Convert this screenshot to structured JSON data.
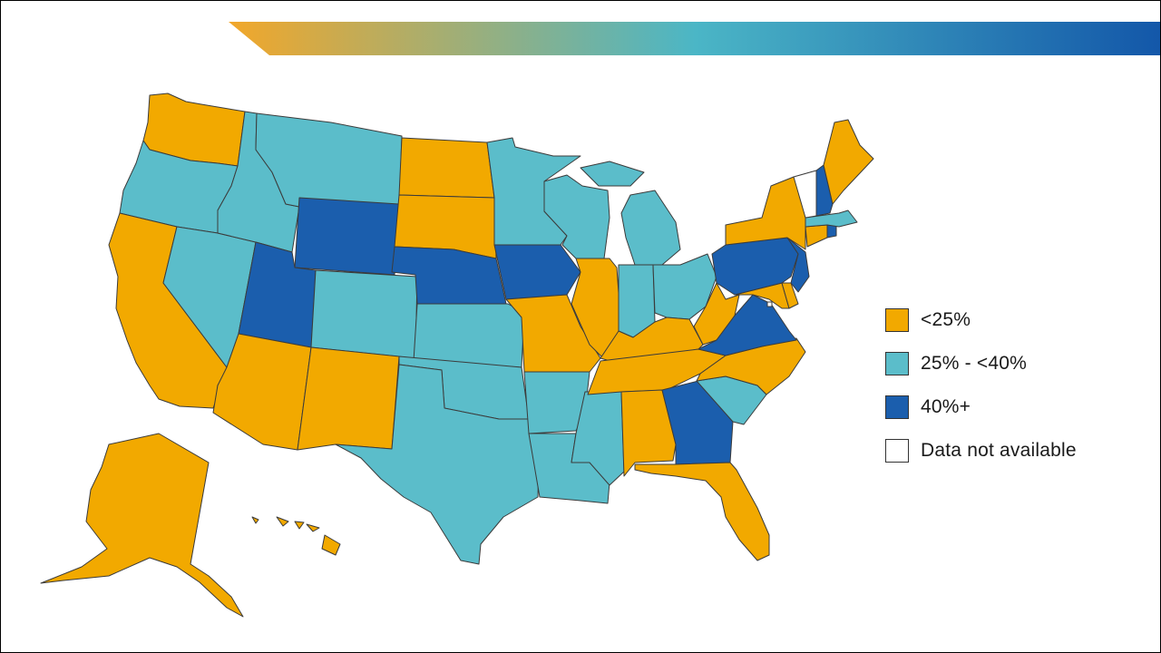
{
  "colors": {
    "low": "#F2A900",
    "mid": "#5BBDCA",
    "high": "#1B5EAD",
    "na": "#FFFFFF",
    "banner_start": "#F2A72A",
    "banner_middle": "#4BB6C6",
    "banner_end": "#1357A9"
  },
  "legend": {
    "items": [
      {
        "label": "<25%",
        "color_key": "low"
      },
      {
        "label": "25% - <40%",
        "color_key": "mid"
      },
      {
        "label": "40%+",
        "color_key": "high"
      },
      {
        "label": "Data not available",
        "color_key": "na"
      }
    ]
  },
  "states": {
    "WA": "low",
    "OR": "mid",
    "CA": "low",
    "NV": "mid",
    "ID": "mid",
    "MT": "mid",
    "WY": "high",
    "UT": "high",
    "AZ": "low",
    "CO": "mid",
    "NM": "low",
    "ND": "low",
    "SD": "low",
    "NE": "high",
    "KS": "mid",
    "OK": "mid",
    "TX": "mid",
    "MN": "mid",
    "IA": "high",
    "MO": "low",
    "AR": "mid",
    "LA": "mid",
    "WI": "mid",
    "IL": "low",
    "MS": "mid",
    "MI": "mid",
    "IN": "mid",
    "KY": "low",
    "TN": "low",
    "AL": "low",
    "OH": "mid",
    "WV": "low",
    "GA": "high",
    "FL": "low",
    "SC": "mid",
    "NC": "low",
    "VA": "high",
    "PA": "high",
    "NY": "low",
    "VT": "na",
    "NH": "high",
    "ME": "low",
    "MA": "mid",
    "RI": "high",
    "CT": "low",
    "NJ": "high",
    "DE": "low",
    "MD": "low",
    "DC": "na",
    "AK": "low",
    "HI": "low"
  }
}
